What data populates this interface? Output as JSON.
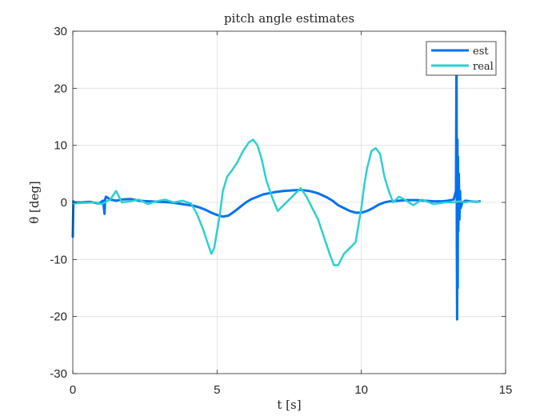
{
  "chart_data": {
    "type": "line",
    "title": "pitch angle estimates",
    "xlabel": "t [s]",
    "ylabel": "θ [deg]",
    "xlim": [
      0,
      15
    ],
    "ylim": [
      -30,
      30
    ],
    "xticks": [
      0,
      5,
      10,
      15
    ],
    "yticks": [
      -30,
      -20,
      -10,
      0,
      10,
      20,
      30
    ],
    "grid": true,
    "legend_position": "top-right",
    "series": [
      {
        "name": "est",
        "color": "#0072ee",
        "x": [
          0.0,
          0.02,
          0.03,
          0.05,
          0.3,
          0.6,
          0.9,
          1.05,
          1.1,
          1.12,
          1.15,
          1.3,
          1.5,
          1.7,
          2.0,
          2.3,
          2.6,
          3.0,
          3.4,
          3.8,
          4.2,
          4.4,
          4.6,
          4.8,
          5.0,
          5.2,
          5.4,
          5.6,
          5.8,
          6.0,
          6.2,
          6.4,
          6.6,
          6.8,
          7.0,
          7.3,
          7.6,
          7.9,
          8.2,
          8.5,
          8.8,
          9.0,
          9.2,
          9.4,
          9.6,
          9.8,
          10.0,
          10.2,
          10.4,
          10.6,
          10.8,
          11.0,
          11.3,
          11.6,
          11.9,
          12.2,
          12.5,
          12.8,
          13.0,
          13.2,
          13.28,
          13.3,
          13.31,
          13.32,
          13.33,
          13.34,
          13.35,
          13.36,
          13.38,
          13.4,
          13.42,
          13.44,
          13.5,
          13.6,
          13.8,
          14.0,
          14.1
        ],
        "y": [
          -6,
          0.2,
          -0.3,
          0,
          0,
          0.1,
          -0.2,
          0.3,
          -2,
          0.5,
          1,
          0.5,
          0.3,
          0.5,
          0.6,
          0.3,
          0.2,
          0.1,
          0,
          -0.3,
          -0.6,
          -0.9,
          -1.3,
          -1.8,
          -2.2,
          -2.5,
          -2.3,
          -1.6,
          -0.8,
          0,
          0.6,
          1.0,
          1.4,
          1.6,
          1.8,
          2.0,
          2.1,
          2.2,
          2.0,
          1.6,
          0.9,
          0.3,
          -0.5,
          -1.0,
          -1.5,
          -1.8,
          -1.8,
          -1.5,
          -1.0,
          -0.4,
          0,
          0.2,
          0.3,
          0.4,
          0.4,
          0.3,
          0.2,
          0.2,
          0.3,
          0.5,
          2,
          27,
          -8,
          -20.5,
          11,
          -15,
          8,
          -5,
          5,
          -3,
          2,
          -1,
          0,
          0.3,
          0.2,
          0.1,
          0.2
        ]
      },
      {
        "name": "real",
        "color": "#2ecfcf",
        "x": [
          0.0,
          0.3,
          0.8,
          1.0,
          1.3,
          1.5,
          1.7,
          2.0,
          2.3,
          2.6,
          2.9,
          3.2,
          3.5,
          3.8,
          4.1,
          4.3,
          4.5,
          4.7,
          4.8,
          4.9,
          5.0,
          5.1,
          5.2,
          5.35,
          5.5,
          5.7,
          5.9,
          6.1,
          6.25,
          6.4,
          6.55,
          6.7,
          6.9,
          7.1,
          7.3,
          7.5,
          7.7,
          7.9,
          8.1,
          8.3,
          8.5,
          8.7,
          8.9,
          9.05,
          9.2,
          9.4,
          9.6,
          9.8,
          9.9,
          10.0,
          10.1,
          10.2,
          10.35,
          10.5,
          10.65,
          10.8,
          10.95,
          11.1,
          11.3,
          11.5,
          11.8,
          12.1,
          12.5,
          12.9,
          13.2,
          13.4,
          13.6,
          13.8,
          14.1
        ],
        "y": [
          -0.2,
          -0.1,
          0,
          -0.3,
          0.5,
          2,
          0,
          0.2,
          0.5,
          -0.3,
          0.2,
          0.5,
          0,
          0.3,
          -0.2,
          -2,
          -4.5,
          -7.5,
          -9,
          -8,
          -5,
          -2,
          2,
          4.5,
          5.5,
          7,
          9,
          10.5,
          11,
          10,
          7.5,
          4,
          1,
          -1.5,
          -0.5,
          0.5,
          1.5,
          2.5,
          1,
          -1,
          -3,
          -6,
          -9,
          -11,
          -11,
          -9,
          -8,
          -7,
          -4,
          -1,
          3,
          6,
          9,
          9.5,
          8.5,
          4.5,
          2,
          0,
          1,
          0.5,
          -0.5,
          0.5,
          -0.3,
          0,
          0,
          0.2,
          0,
          0.2,
          0.1
        ]
      }
    ]
  }
}
